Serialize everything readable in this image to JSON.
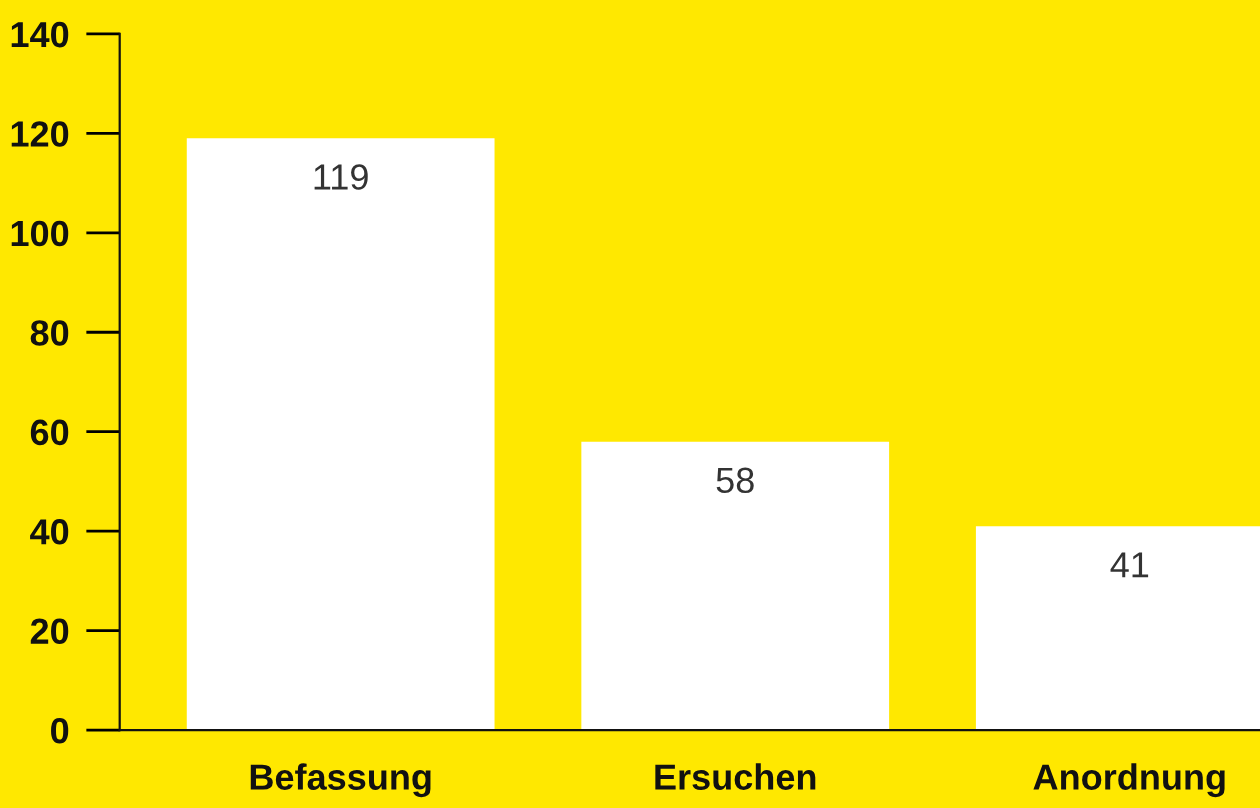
{
  "chart_data": {
    "type": "bar",
    "categories": [
      "Befassung",
      "Ersuchen",
      "Anordnung"
    ],
    "values": [
      119,
      58,
      41
    ],
    "color": "#ffffff",
    "ylim": [
      0,
      140
    ],
    "yticks": [
      0,
      20,
      40,
      60,
      80,
      100,
      120,
      140
    ],
    "grid": false,
    "data_labels": true
  }
}
